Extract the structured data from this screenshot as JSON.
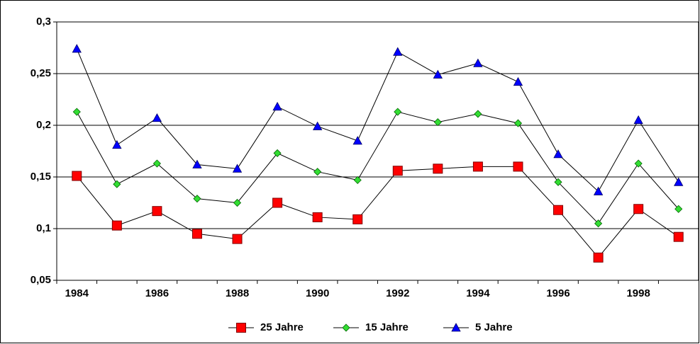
{
  "chart_data": {
    "type": "line",
    "categories": [
      "1984",
      null,
      "1986",
      null,
      "1988",
      null,
      "1990",
      null,
      "1992",
      null,
      "1994",
      null,
      "1996",
      null,
      "1998",
      null
    ],
    "series": [
      {
        "name": "25 Jahre",
        "color": "#ff0000",
        "marker": "square",
        "values": [
          0.151,
          0.103,
          0.117,
          0.095,
          0.09,
          0.125,
          0.111,
          0.109,
          0.156,
          0.158,
          0.16,
          0.16,
          0.118,
          0.072,
          0.119,
          0.092
        ]
      },
      {
        "name": "15 Jahre",
        "color": "#33dd33",
        "marker": "diamond",
        "values": [
          0.213,
          0.143,
          0.163,
          0.129,
          0.125,
          0.173,
          0.155,
          0.147,
          0.213,
          0.203,
          0.211,
          0.202,
          0.145,
          0.105,
          0.163,
          0.119
        ]
      },
      {
        "name": "5 Jahre",
        "color": "#0000ff",
        "marker": "triangle",
        "values": [
          0.274,
          0.181,
          0.207,
          0.162,
          0.158,
          0.218,
          0.199,
          0.185,
          0.271,
          0.249,
          0.26,
          0.242,
          0.172,
          0.136,
          0.205,
          0.145
        ]
      }
    ],
    "ylim": [
      0.05,
      0.3
    ],
    "yticks": [
      {
        "value": 0.05,
        "label": "0,05"
      },
      {
        "value": 0.1,
        "label": "0,1"
      },
      {
        "value": 0.15,
        "label": "0,15"
      },
      {
        "value": 0.2,
        "label": "0,2"
      },
      {
        "value": 0.25,
        "label": "0,25"
      },
      {
        "value": 0.3,
        "label": "0,3"
      }
    ],
    "grid": true,
    "legend": "bottom"
  }
}
